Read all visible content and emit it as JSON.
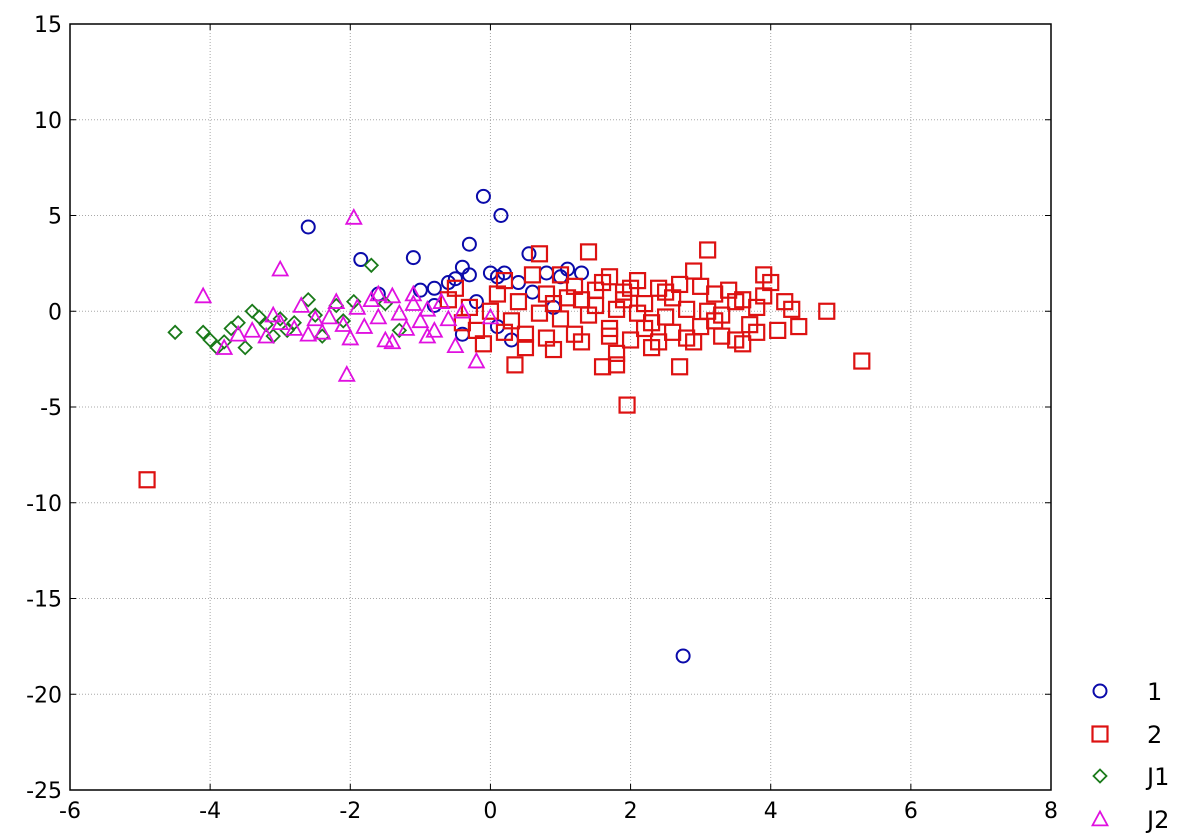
{
  "chart_data": {
    "type": "scatter",
    "title": "",
    "xlabel": "",
    "ylabel": "",
    "xlim": [
      -6,
      8
    ],
    "ylim": [
      -25,
      15
    ],
    "x_ticks": [
      -6,
      -4,
      -2,
      0,
      2,
      4,
      6,
      8
    ],
    "y_ticks": [
      15,
      10,
      5,
      0,
      -5,
      -10,
      -15,
      -20,
      -25
    ],
    "x_tick_labels": [
      "-6",
      "-4",
      "-2",
      "0",
      "2",
      "4",
      "6",
      "8"
    ],
    "y_tick_labels": [
      "15",
      "10",
      "5",
      "0",
      "-5",
      "-10",
      "-15",
      "-20",
      "-25"
    ],
    "grid": true,
    "legend_position": "bottom-right",
    "series": [
      {
        "name": "1",
        "marker": "circle",
        "color": "#0a0aaa",
        "points": [
          [
            -2.6,
            4.4
          ],
          [
            -0.1,
            6.0
          ],
          [
            0.15,
            5.0
          ],
          [
            -1.85,
            2.7
          ],
          [
            -1.1,
            2.8
          ],
          [
            -0.3,
            3.5
          ],
          [
            -0.4,
            2.3
          ],
          [
            0.55,
            3.0
          ],
          [
            2.75,
            -18.0
          ],
          [
            -1.6,
            0.9
          ],
          [
            -1.0,
            1.1
          ],
          [
            -0.8,
            1.2
          ],
          [
            -0.6,
            1.5
          ],
          [
            -0.5,
            1.7
          ],
          [
            -0.3,
            1.9
          ],
          [
            0.0,
            2.0
          ],
          [
            0.1,
            1.8
          ],
          [
            0.2,
            2.0
          ],
          [
            0.4,
            1.5
          ],
          [
            0.8,
            2.0
          ],
          [
            1.0,
            1.8
          ],
          [
            1.3,
            2.0
          ],
          [
            1.1,
            2.2
          ],
          [
            0.3,
            -1.5
          ],
          [
            -0.4,
            -1.2
          ],
          [
            0.1,
            -0.8
          ],
          [
            -0.2,
            0.5
          ],
          [
            0.6,
            1.0
          ],
          [
            -0.8,
            0.3
          ],
          [
            0.9,
            0.2
          ]
        ]
      },
      {
        "name": "2",
        "marker": "square",
        "color": "#dd1111",
        "points": [
          [
            -4.9,
            -8.8
          ],
          [
            5.3,
            -2.6
          ],
          [
            1.95,
            -4.9
          ],
          [
            1.4,
            3.1
          ],
          [
            3.1,
            3.2
          ],
          [
            0.7,
            3.0
          ],
          [
            2.9,
            2.1
          ],
          [
            3.9,
            1.9
          ],
          [
            4.8,
            0.0
          ],
          [
            4.4,
            -0.8
          ],
          [
            4.2,
            0.5
          ],
          [
            0.35,
            -2.8
          ],
          [
            1.6,
            -2.9
          ],
          [
            2.7,
            -2.9
          ],
          [
            1.8,
            -2.8
          ],
          [
            1.7,
            1.8
          ],
          [
            2.5,
            1.0
          ],
          [
            -0.5,
            1.2
          ],
          [
            -0.2,
            -1.0
          ],
          [
            0.2,
            1.6
          ],
          [
            0.4,
            0.5
          ],
          [
            0.5,
            -1.2
          ],
          [
            0.8,
            0.9
          ],
          [
            1.0,
            -0.4
          ],
          [
            1.2,
            1.3
          ],
          [
            1.3,
            -1.6
          ],
          [
            1.5,
            0.3
          ],
          [
            1.7,
            -0.9
          ],
          [
            1.9,
            1.0
          ],
          [
            2.0,
            -1.5
          ],
          [
            2.2,
            0.4
          ],
          [
            2.3,
            -0.6
          ],
          [
            2.4,
            1.2
          ],
          [
            2.6,
            -1.1
          ],
          [
            2.8,
            0.1
          ],
          [
            3.0,
            -0.8
          ],
          [
            3.2,
            0.9
          ],
          [
            3.3,
            -1.3
          ],
          [
            3.5,
            0.5
          ],
          [
            3.6,
            -1.7
          ],
          [
            3.8,
            0.2
          ],
          [
            4.0,
            1.5
          ],
          [
            4.1,
            -1.0
          ],
          [
            0.0,
            0.0
          ],
          [
            0.3,
            -0.5
          ],
          [
            0.6,
            1.9
          ],
          [
            0.9,
            -2.0
          ],
          [
            1.1,
            0.7
          ],
          [
            1.4,
            -0.2
          ],
          [
            1.6,
            1.5
          ],
          [
            1.8,
            -2.2
          ],
          [
            2.1,
            1.6
          ],
          [
            2.3,
            -1.9
          ],
          [
            2.5,
            -0.3
          ],
          [
            2.7,
            1.4
          ],
          [
            2.9,
            -1.6
          ],
          [
            3.1,
            0.0
          ],
          [
            3.4,
            1.1
          ],
          [
            3.7,
            -0.7
          ],
          [
            3.9,
            0.8
          ],
          [
            -0.3,
            0.2
          ],
          [
            -0.1,
            -1.7
          ],
          [
            0.1,
            0.9
          ],
          [
            0.5,
            -1.9
          ],
          [
            0.7,
            -0.1
          ],
          [
            1.0,
            1.9
          ],
          [
            1.2,
            -1.2
          ],
          [
            1.5,
            1.1
          ],
          [
            1.8,
            0.1
          ],
          [
            2.0,
            1.2
          ],
          [
            2.2,
            -0.9
          ],
          [
            2.6,
            0.7
          ],
          [
            2.8,
            -1.4
          ],
          [
            3.0,
            1.3
          ],
          [
            3.3,
            -0.2
          ],
          [
            3.6,
            0.6
          ],
          [
            3.8,
            -1.1
          ],
          [
            4.3,
            0.1
          ],
          [
            0.2,
            -1.1
          ],
          [
            0.9,
            0.4
          ],
          [
            1.3,
            0.6
          ],
          [
            1.7,
            -1.3
          ],
          [
            2.1,
            -0.1
          ],
          [
            2.4,
            -1.6
          ],
          [
            3.2,
            -0.5
          ],
          [
            3.5,
            -1.5
          ],
          [
            -0.6,
            0.6
          ],
          [
            -0.4,
            -0.6
          ],
          [
            0.8,
            -1.4
          ],
          [
            1.9,
            0.6
          ]
        ]
      },
      {
        "name": "J1",
        "marker": "diamond",
        "color": "#1a7a1a",
        "points": [
          [
            -4.5,
            -1.1
          ],
          [
            -4.1,
            -1.1
          ],
          [
            -4.0,
            -1.5
          ],
          [
            -3.9,
            -1.9
          ],
          [
            -3.8,
            -1.6
          ],
          [
            -3.7,
            -0.9
          ],
          [
            -3.6,
            -0.6
          ],
          [
            -3.5,
            -1.9
          ],
          [
            -3.4,
            0.0
          ],
          [
            -3.3,
            -0.3
          ],
          [
            -3.2,
            -0.7
          ],
          [
            -3.1,
            -1.3
          ],
          [
            -3.0,
            -0.4
          ],
          [
            -2.9,
            -1.0
          ],
          [
            -2.8,
            -0.6
          ],
          [
            -2.6,
            0.6
          ],
          [
            -2.5,
            -0.2
          ],
          [
            -2.4,
            -1.3
          ],
          [
            -2.2,
            0.3
          ],
          [
            -2.1,
            -0.5
          ],
          [
            -1.95,
            0.5
          ],
          [
            -1.7,
            2.4
          ],
          [
            -1.5,
            0.4
          ],
          [
            -1.3,
            -1.0
          ]
        ]
      },
      {
        "name": "J2",
        "marker": "triangle",
        "color": "#e010e0",
        "points": [
          [
            -1.95,
            4.9
          ],
          [
            -3.0,
            2.2
          ],
          [
            -4.1,
            0.8
          ],
          [
            -2.05,
            -3.3
          ],
          [
            -0.2,
            -2.6
          ],
          [
            -0.5,
            -1.8
          ],
          [
            -3.8,
            -1.9
          ],
          [
            -3.6,
            -1.2
          ],
          [
            -3.4,
            -1.0
          ],
          [
            -3.2,
            -1.3
          ],
          [
            -3.0,
            -0.6
          ],
          [
            -2.8,
            -0.9
          ],
          [
            -2.7,
            0.3
          ],
          [
            -2.5,
            -0.4
          ],
          [
            -2.4,
            -1.1
          ],
          [
            -2.2,
            0.5
          ],
          [
            -2.1,
            -0.7
          ],
          [
            -2.0,
            -1.4
          ],
          [
            -1.9,
            0.2
          ],
          [
            -1.8,
            -0.8
          ],
          [
            -1.7,
            0.6
          ],
          [
            -1.6,
            -0.3
          ],
          [
            -1.5,
            -1.5
          ],
          [
            -1.4,
            0.8
          ],
          [
            -1.3,
            -0.1
          ],
          [
            -1.2,
            -0.9
          ],
          [
            -1.1,
            0.4
          ],
          [
            -1.0,
            -0.5
          ],
          [
            -0.9,
            0.1
          ],
          [
            -0.8,
            -1.0
          ],
          [
            -0.7,
            0.5
          ],
          [
            -0.6,
            -0.4
          ],
          [
            -0.4,
            0.0
          ],
          [
            0.0,
            -0.3
          ],
          [
            -1.4,
            -1.6
          ],
          [
            -2.3,
            -0.3
          ],
          [
            -3.1,
            -0.2
          ],
          [
            -2.6,
            -1.2
          ],
          [
            -1.6,
            0.9
          ],
          [
            -0.9,
            -1.3
          ],
          [
            -1.1,
            0.9
          ]
        ]
      }
    ]
  }
}
